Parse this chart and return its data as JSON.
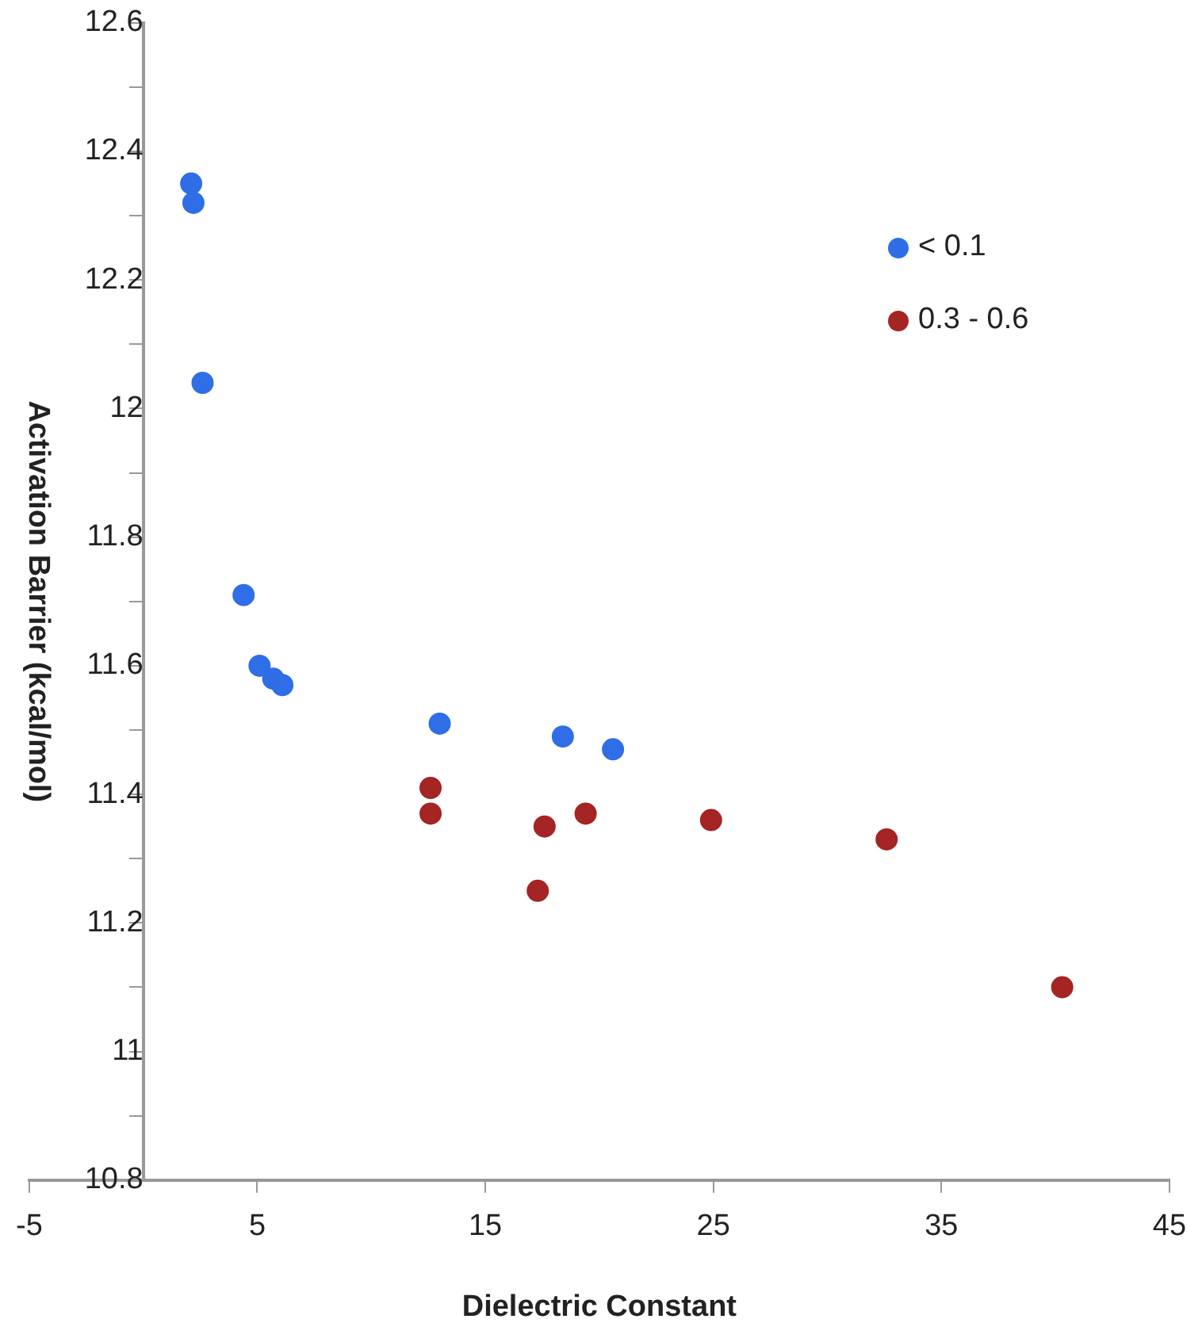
{
  "chart_data": {
    "type": "scatter",
    "xlabel": "Dielectric Constant",
    "ylabel": "Activation Barrier (kcal/mol)",
    "xlim": [
      -5,
      45
    ],
    "xticks": [
      -5,
      5,
      15,
      25,
      35,
      45
    ],
    "ylim": [
      10.8,
      12.6
    ],
    "yticks": [
      10.8,
      {
        "value": 10.9,
        "label": null
      },
      11,
      {
        "value": 11.1,
        "label": null
      },
      11.2,
      {
        "value": 11.3,
        "label": null
      },
      11.4,
      {
        "value": 11.5,
        "label": null
      },
      11.6,
      {
        "value": 11.7,
        "label": null
      },
      11.8,
      {
        "value": 11.9,
        "label": null
      },
      12,
      {
        "value": 12.1,
        "label": null
      },
      12.2,
      {
        "value": 12.3,
        "label": null
      },
      12.4,
      {
        "value": 12.5,
        "label": null
      },
      12.6
    ],
    "grid": false,
    "legend": "top right",
    "marker": "circle",
    "series": [
      {
        "name": "< 0.1",
        "color": "#2f6ee6",
        "x": [
          2.1,
          2.2,
          2.6,
          4.4,
          5.1,
          5.7,
          6.1,
          13.0,
          18.4,
          20.6
        ],
        "values": [
          12.35,
          12.32,
          12.04,
          11.71,
          11.6,
          11.58,
          11.57,
          11.51,
          11.49,
          11.47
        ]
      },
      {
        "name": "0.3 - 0.6",
        "color": "#a52424",
        "x": [
          12.6,
          12.6,
          17.6,
          17.3,
          19.4,
          24.9,
          32.6,
          40.3
        ],
        "values": [
          11.41,
          11.37,
          11.35,
          11.25,
          11.37,
          11.36,
          11.33,
          11.1
        ]
      }
    ]
  }
}
